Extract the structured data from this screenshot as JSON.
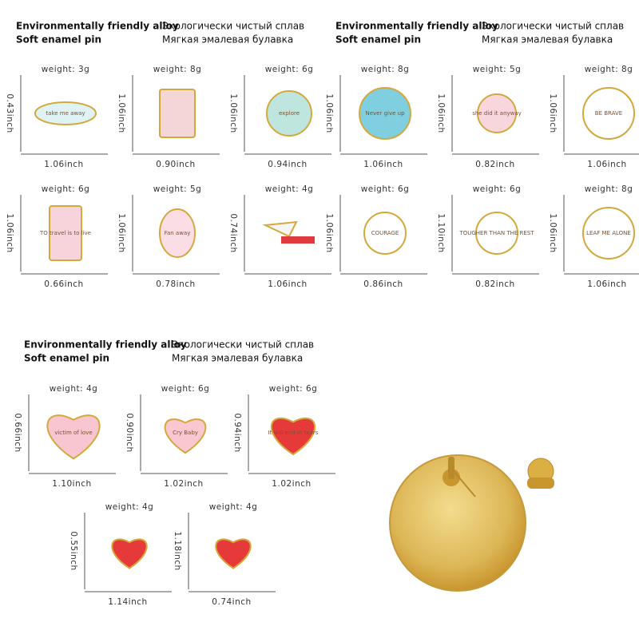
{
  "panels": [
    {
      "header": {
        "en": [
          "Environmentally friendly alloy",
          "Soft enamel pin"
        ],
        "ru": [
          "Экологически чистый сплав",
          "Мягкая эмалевая булавка"
        ]
      },
      "items": [
        {
          "weight": "weight: 3g",
          "height": "0.43inch",
          "width": "1.06inch",
          "text": "take me away"
        },
        {
          "weight": "weight: 8g",
          "height": "1.06inch",
          "width": "0.90inch"
        },
        {
          "weight": "weight: 6g",
          "height": "1.06inch",
          "width": "0.94inch",
          "text": "explore"
        },
        {
          "weight": "weight: 6g",
          "height": "1.06inch",
          "width": "0.66inch",
          "text": "TO travel is to live"
        },
        {
          "weight": "weight: 5g",
          "height": "1.06inch",
          "width": "0.78inch",
          "text": "Fan away"
        },
        {
          "weight": "weight: 4g",
          "height": "0.74inch",
          "width": "1.06inch"
        }
      ]
    },
    {
      "header": {
        "en": [
          "Environmentally friendly alloy",
          "Soft enamel pin"
        ],
        "ru": [
          "Экологически чистый сплав",
          "Мягкая эмалевая булавка"
        ]
      },
      "items": [
        {
          "weight": "weight: 8g",
          "height": "1.06inch",
          "width": "1.06inch",
          "text": "Never give up"
        },
        {
          "weight": "weight: 5g",
          "height": "1.06inch",
          "width": "0.82inch",
          "text": "she did it anyway"
        },
        {
          "weight": "weight: 8g",
          "height": "1.06inch",
          "width": "1.06inch",
          "text": "BE BRAVE"
        },
        {
          "weight": "weight: 6g",
          "height": "1.06inch",
          "width": "0.86inch",
          "text": "COURAGE"
        },
        {
          "weight": "weight: 6g",
          "height": "1.10inch",
          "width": "0.82inch",
          "text": "TOUGHER THAN THE REST"
        },
        {
          "weight": "weight: 8g",
          "height": "1.06inch",
          "width": "1.06inch",
          "text": "LEAF ME ALONE"
        }
      ]
    },
    {
      "header": {
        "en": [
          "Environmentally friendly alloy",
          "Soft enamel pin"
        ],
        "ru": [
          "Экологически чистый сплав",
          "Мягкая эмалевая булавка"
        ]
      },
      "items": [
        {
          "weight": "weight: 4g",
          "height": "0.66inch",
          "width": "1.10inch",
          "text": "victim of love"
        },
        {
          "weight": "weight: 6g",
          "height": "0.90inch",
          "width": "1.02inch",
          "text": "Cry Baby"
        },
        {
          "weight": "weight: 6g",
          "height": "0.94inch",
          "width": "1.02inch",
          "text": "It will end in tears"
        },
        {
          "weight": "weight: 4g",
          "height": "0.55inch",
          "width": "1.14inch"
        },
        {
          "weight": "weight: 4g",
          "height": "1.18inch",
          "width": "0.74inch"
        }
      ]
    }
  ]
}
